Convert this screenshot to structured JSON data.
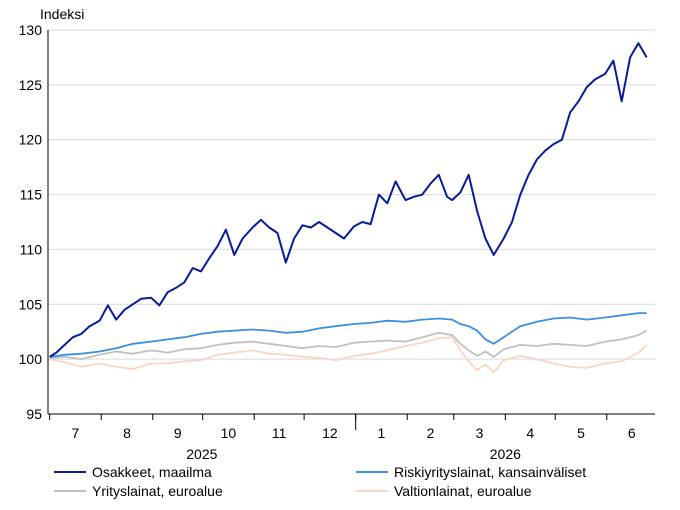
{
  "chart_data": {
    "type": "line",
    "unit_label": "Indeksi",
    "ylim": [
      95,
      130
    ],
    "yticks": [
      95,
      100,
      105,
      110,
      115,
      120,
      125,
      130
    ],
    "grid": true,
    "legend_position": "bottom",
    "months": [
      "7",
      "8",
      "9",
      "10",
      "11",
      "12",
      "1",
      "2",
      "3",
      "4",
      "5",
      "6"
    ],
    "years": [
      "2025",
      "2026"
    ],
    "x_start": "2025-06-30",
    "x_end": "2026-06-30",
    "series": [
      {
        "name": "Osakkeet, maailma",
        "color": "#0a1a9a",
        "x": [
          "2025-07-01",
          "2025-07-05",
          "2025-07-10",
          "2025-07-15",
          "2025-07-20",
          "2025-07-25",
          "2025-07-31",
          "2025-08-05",
          "2025-08-10",
          "2025-08-15",
          "2025-08-20",
          "2025-08-25",
          "2025-08-31",
          "2025-09-05",
          "2025-09-10",
          "2025-09-15",
          "2025-09-20",
          "2025-09-25",
          "2025-09-30",
          "2025-10-05",
          "2025-10-10",
          "2025-10-15",
          "2025-10-20",
          "2025-10-25",
          "2025-10-31",
          "2025-11-05",
          "2025-11-10",
          "2025-11-15",
          "2025-11-20",
          "2025-11-25",
          "2025-11-30",
          "2025-12-05",
          "2025-12-10",
          "2025-12-15",
          "2025-12-20",
          "2025-12-25",
          "2025-12-31",
          "2026-01-05",
          "2026-01-10",
          "2026-01-15",
          "2026-01-20",
          "2026-01-25",
          "2026-01-31",
          "2026-02-05",
          "2026-02-10",
          "2026-02-15",
          "2026-02-20",
          "2026-02-25",
          "2026-02-28",
          "2026-03-05",
          "2026-03-10",
          "2026-03-15",
          "2026-03-20",
          "2026-03-25",
          "2026-03-31",
          "2026-04-05",
          "2026-04-10",
          "2026-04-15",
          "2026-04-20",
          "2026-04-25",
          "2026-04-30",
          "2026-05-05",
          "2026-05-10",
          "2026-05-15",
          "2026-05-20",
          "2026-05-25",
          "2026-05-31",
          "2026-06-05",
          "2026-06-10",
          "2026-06-15",
          "2026-06-20",
          "2026-06-25"
        ],
        "values": [
          100.2,
          100.6,
          101.3,
          102.0,
          102.3,
          103.0,
          103.5,
          104.9,
          103.6,
          104.5,
          105.0,
          105.5,
          105.6,
          104.9,
          106.1,
          106.5,
          107.0,
          108.3,
          108.0,
          109.2,
          110.3,
          111.8,
          109.5,
          111.0,
          112.0,
          112.7,
          112.0,
          111.5,
          108.8,
          111.0,
          112.2,
          112.0,
          112.5,
          112.0,
          111.5,
          111.0,
          112.1,
          112.5,
          112.3,
          115.0,
          114.2,
          116.2,
          114.5,
          114.8,
          115.0,
          116.0,
          116.8,
          114.8,
          114.5,
          115.2,
          116.8,
          113.5,
          111.0,
          109.5,
          111.0,
          112.5,
          115.0,
          116.8,
          118.2,
          119.0,
          119.6,
          120.0,
          122.5,
          123.5,
          124.8,
          125.5,
          126.0,
          127.2,
          123.5,
          127.5,
          128.8,
          127.5
        ]
      },
      {
        "name": "Riskiyrityslainat, kansainväliset",
        "color": "#3d8fe0",
        "x": [
          "2025-07-01",
          "2025-07-10",
          "2025-07-20",
          "2025-07-31",
          "2025-08-10",
          "2025-08-20",
          "2025-08-31",
          "2025-09-10",
          "2025-09-20",
          "2025-09-30",
          "2025-10-10",
          "2025-10-20",
          "2025-10-31",
          "2025-11-10",
          "2025-11-20",
          "2025-11-30",
          "2025-12-10",
          "2025-12-20",
          "2025-12-31",
          "2026-01-10",
          "2026-01-20",
          "2026-01-31",
          "2026-02-10",
          "2026-02-20",
          "2026-02-28",
          "2026-03-05",
          "2026-03-10",
          "2026-03-15",
          "2026-03-20",
          "2026-03-25",
          "2026-03-31",
          "2026-04-10",
          "2026-04-20",
          "2026-04-30",
          "2026-05-10",
          "2026-05-20",
          "2026-05-31",
          "2026-06-10",
          "2026-06-20",
          "2026-06-25"
        ],
        "values": [
          100.2,
          100.4,
          100.5,
          100.7,
          101.0,
          101.4,
          101.6,
          101.8,
          102.0,
          102.3,
          102.5,
          102.6,
          102.7,
          102.6,
          102.4,
          102.5,
          102.8,
          103.0,
          103.2,
          103.3,
          103.5,
          103.4,
          103.6,
          103.7,
          103.6,
          103.2,
          103.0,
          102.6,
          101.8,
          101.4,
          102.0,
          103.0,
          103.4,
          103.7,
          103.8,
          103.6,
          103.8,
          104.0,
          104.2,
          104.2
        ]
      },
      {
        "name": "Yrityslainat, euroalue",
        "color": "#c0c0c0",
        "x": [
          "2025-07-01",
          "2025-07-10",
          "2025-07-20",
          "2025-07-31",
          "2025-08-10",
          "2025-08-20",
          "2025-08-31",
          "2025-09-10",
          "2025-09-20",
          "2025-09-30",
          "2025-10-10",
          "2025-10-20",
          "2025-10-31",
          "2025-11-10",
          "2025-11-20",
          "2025-11-30",
          "2025-12-10",
          "2025-12-20",
          "2025-12-31",
          "2026-01-10",
          "2026-01-20",
          "2026-01-31",
          "2026-02-10",
          "2026-02-20",
          "2026-02-28",
          "2026-03-05",
          "2026-03-10",
          "2026-03-15",
          "2026-03-20",
          "2026-03-25",
          "2026-03-31",
          "2026-04-10",
          "2026-04-20",
          "2026-04-30",
          "2026-05-10",
          "2026-05-20",
          "2026-05-31",
          "2026-06-10",
          "2026-06-20",
          "2026-06-25"
        ],
        "values": [
          100.1,
          100.2,
          100.0,
          100.4,
          100.7,
          100.5,
          100.8,
          100.6,
          100.9,
          101.0,
          101.3,
          101.5,
          101.6,
          101.4,
          101.2,
          101.0,
          101.2,
          101.1,
          101.5,
          101.6,
          101.7,
          101.6,
          102.0,
          102.4,
          102.2,
          101.4,
          100.8,
          100.3,
          100.7,
          100.2,
          100.9,
          101.3,
          101.2,
          101.4,
          101.3,
          101.2,
          101.6,
          101.8,
          102.2,
          102.6
        ]
      },
      {
        "name": "Valtionlainat, euroalue",
        "color": "#f8d5c4",
        "x": [
          "2025-07-01",
          "2025-07-10",
          "2025-07-20",
          "2025-07-31",
          "2025-08-10",
          "2025-08-20",
          "2025-08-31",
          "2025-09-10",
          "2025-09-20",
          "2025-09-30",
          "2025-10-10",
          "2025-10-20",
          "2025-10-31",
          "2025-11-10",
          "2025-11-20",
          "2025-11-30",
          "2025-12-10",
          "2025-12-20",
          "2025-12-31",
          "2026-01-10",
          "2026-01-20",
          "2026-01-31",
          "2026-02-10",
          "2026-02-20",
          "2026-02-28",
          "2026-03-05",
          "2026-03-10",
          "2026-03-15",
          "2026-03-20",
          "2026-03-25",
          "2026-03-31",
          "2026-04-10",
          "2026-04-20",
          "2026-04-30",
          "2026-05-10",
          "2026-05-20",
          "2026-05-31",
          "2026-06-10",
          "2026-06-20",
          "2026-06-25"
        ],
        "values": [
          100.0,
          99.7,
          99.3,
          99.6,
          99.3,
          99.1,
          99.6,
          99.6,
          99.8,
          99.9,
          100.4,
          100.6,
          100.8,
          100.5,
          100.4,
          100.2,
          100.1,
          99.9,
          100.3,
          100.5,
          100.8,
          101.2,
          101.5,
          101.9,
          102.0,
          100.8,
          99.8,
          99.0,
          99.5,
          98.8,
          99.9,
          100.3,
          100.0,
          99.6,
          99.3,
          99.2,
          99.6,
          99.8,
          100.6,
          101.3
        ]
      }
    ]
  }
}
